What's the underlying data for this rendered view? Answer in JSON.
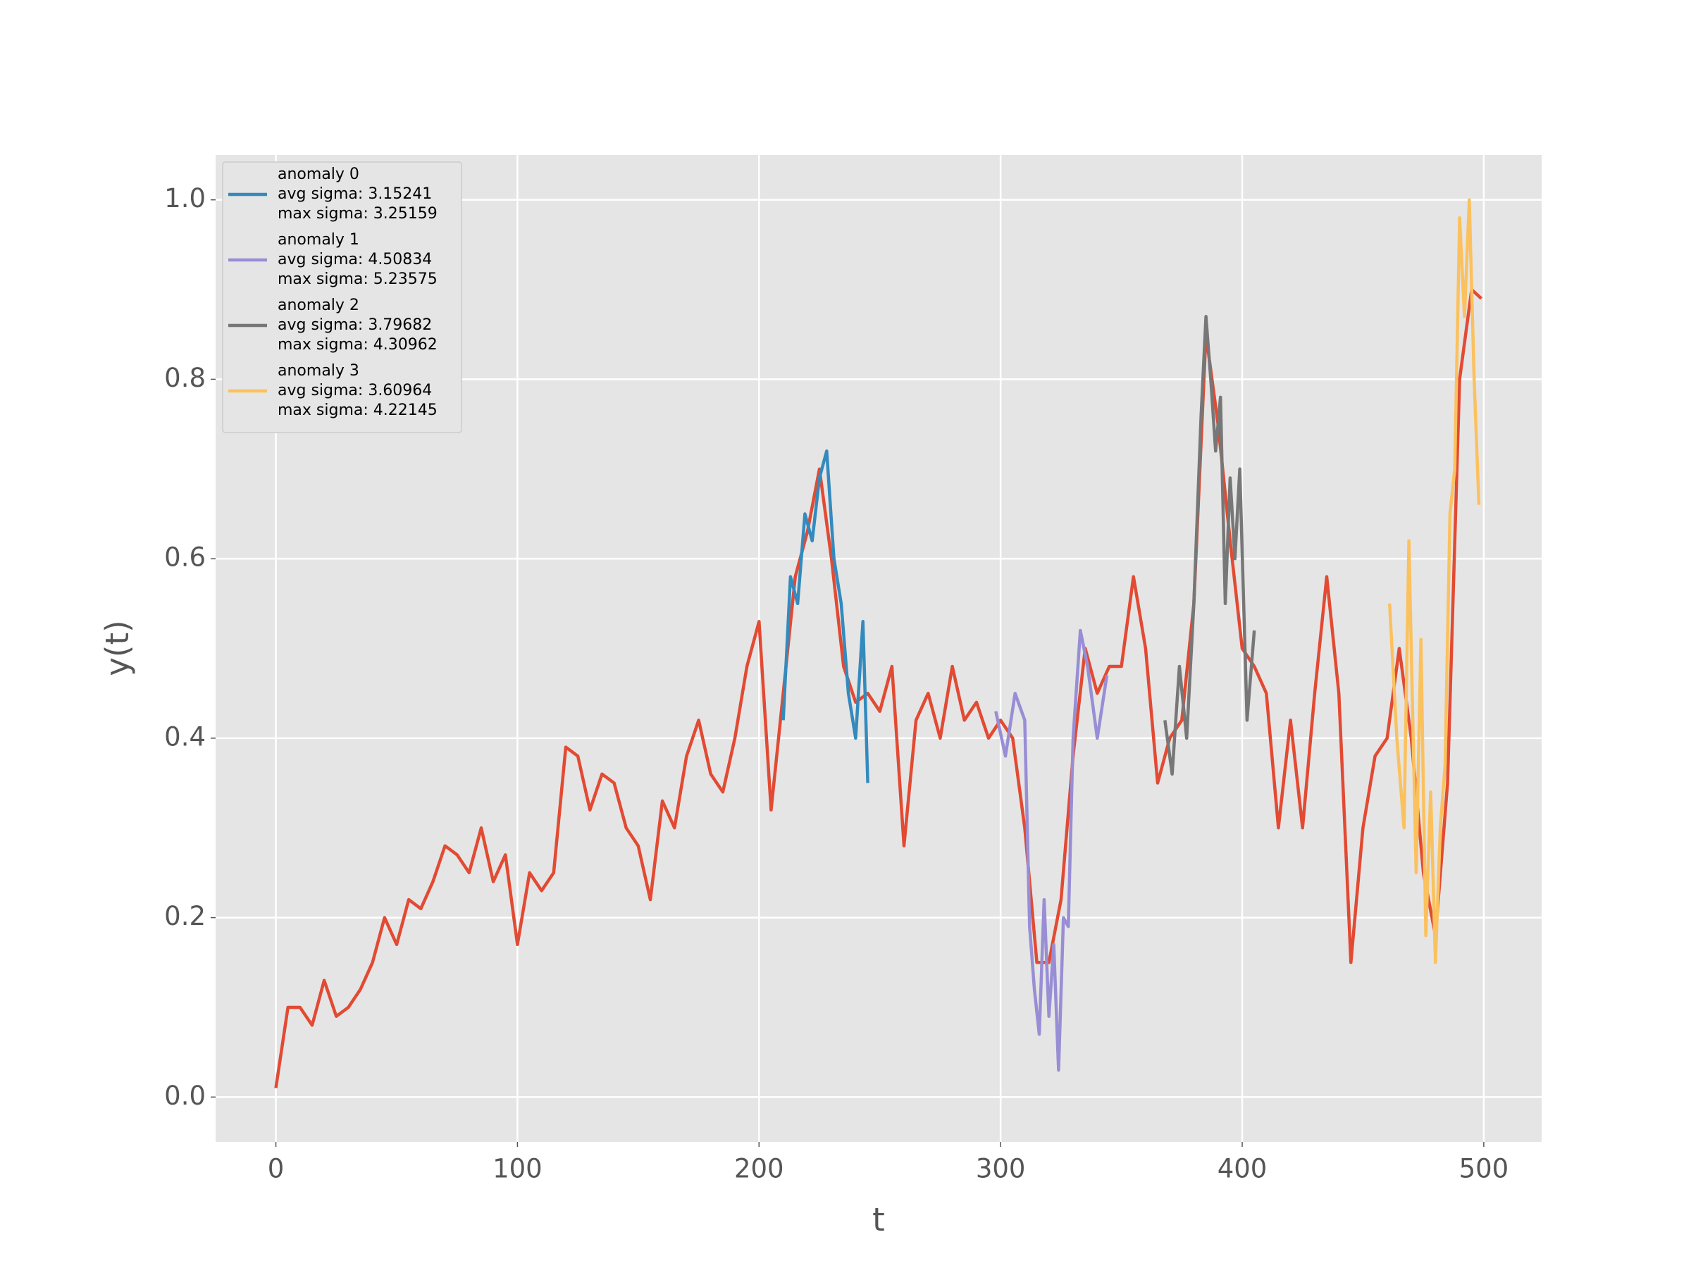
{
  "chart_data": {
    "type": "line",
    "xlabel": "t",
    "ylabel": "y(t)",
    "xlim": [
      -24.95,
      523.95
    ],
    "ylim": [
      -0.05,
      1.05
    ],
    "xticks": [
      0,
      100,
      200,
      300,
      400,
      500
    ],
    "yticks": [
      {
        "value": 0,
        "label": "0.0"
      },
      {
        "value": 0.2,
        "label": "0.2"
      },
      {
        "value": 0.4,
        "label": "0.4"
      },
      {
        "value": 0.6,
        "label": "0.6"
      },
      {
        "value": 0.8,
        "label": "0.8"
      },
      {
        "value": 1.0,
        "label": "1.0"
      }
    ],
    "grid": true,
    "legend": "upper left",
    "series": [
      {
        "color": "#E24A33",
        "x": [
          0,
          5,
          10,
          15,
          20,
          25,
          30,
          35,
          40,
          45,
          50,
          55,
          60,
          65,
          70,
          75,
          80,
          85,
          90,
          95,
          100,
          105,
          110,
          115,
          120,
          125,
          130,
          135,
          140,
          145,
          150,
          155,
          160,
          165,
          170,
          175,
          180,
          185,
          190,
          195,
          200,
          205,
          210,
          215,
          220,
          225,
          230,
          235,
          240,
          245,
          250,
          255,
          260,
          265,
          270,
          275,
          280,
          285,
          290,
          295,
          300,
          305,
          310,
          315,
          320,
          325,
          330,
          335,
          340,
          345,
          350,
          355,
          360,
          365,
          370,
          375,
          380,
          385,
          390,
          395,
          400,
          405,
          410,
          415,
          420,
          425,
          430,
          435,
          440,
          445,
          450,
          455,
          460,
          465,
          470,
          475,
          480,
          485,
          490,
          495,
          499
        ],
        "values": [
          0.01,
          0.1,
          0.1,
          0.08,
          0.13,
          0.09,
          0.1,
          0.12,
          0.15,
          0.2,
          0.17,
          0.22,
          0.21,
          0.24,
          0.28,
          0.27,
          0.25,
          0.3,
          0.24,
          0.27,
          0.17,
          0.25,
          0.23,
          0.25,
          0.39,
          0.38,
          0.32,
          0.36,
          0.35,
          0.3,
          0.28,
          0.22,
          0.33,
          0.3,
          0.38,
          0.42,
          0.36,
          0.34,
          0.4,
          0.48,
          0.53,
          0.32,
          0.45,
          0.58,
          0.63,
          0.7,
          0.6,
          0.48,
          0.44,
          0.45,
          0.43,
          0.48,
          0.28,
          0.42,
          0.45,
          0.4,
          0.48,
          0.42,
          0.44,
          0.4,
          0.42,
          0.4,
          0.3,
          0.15,
          0.15,
          0.22,
          0.38,
          0.5,
          0.45,
          0.48,
          0.48,
          0.58,
          0.5,
          0.35,
          0.4,
          0.42,
          0.55,
          0.85,
          0.75,
          0.62,
          0.5,
          0.48,
          0.45,
          0.3,
          0.42,
          0.3,
          0.45,
          0.58,
          0.45,
          0.15,
          0.3,
          0.38,
          0.4,
          0.5,
          0.4,
          0.25,
          0.18,
          0.35,
          0.8,
          0.9,
          0.89
        ]
      },
      {
        "name": [
          "anomaly 0",
          "avg sigma: 3.15241",
          "max sigma: 3.25159"
        ],
        "color": "#348ABD",
        "x": [
          210,
          213,
          216,
          219,
          222,
          225,
          228,
          231,
          234,
          237,
          240,
          243,
          245
        ],
        "values": [
          0.42,
          0.58,
          0.55,
          0.65,
          0.62,
          0.69,
          0.72,
          0.6,
          0.55,
          0.45,
          0.4,
          0.53,
          0.35
        ]
      },
      {
        "name": [
          "anomaly 1",
          "avg sigma: 4.50834",
          "max sigma: 5.23575"
        ],
        "color": "#988ED5",
        "x": [
          298,
          302,
          306,
          310,
          312,
          314,
          316,
          318,
          320,
          322,
          324,
          326,
          328,
          330,
          333,
          336,
          340,
          344
        ],
        "values": [
          0.43,
          0.38,
          0.45,
          0.42,
          0.19,
          0.12,
          0.07,
          0.22,
          0.09,
          0.17,
          0.03,
          0.2,
          0.19,
          0.4,
          0.52,
          0.48,
          0.4,
          0.47
        ]
      },
      {
        "name": [
          "anomaly 2",
          "avg sigma: 3.79682",
          "max sigma: 4.30962"
        ],
        "color": "#777777",
        "x": [
          368,
          371,
          374,
          377,
          380,
          383,
          385,
          387,
          389,
          391,
          393,
          395,
          397,
          399,
          402,
          405
        ],
        "values": [
          0.42,
          0.36,
          0.48,
          0.4,
          0.55,
          0.76,
          0.87,
          0.8,
          0.72,
          0.78,
          0.55,
          0.69,
          0.6,
          0.7,
          0.42,
          0.52
        ]
      },
      {
        "name": [
          "anomaly 3",
          "avg sigma: 3.60964",
          "max sigma: 4.22145"
        ],
        "color": "#FBC15E",
        "x": [
          461,
          464,
          467,
          469,
          472,
          474,
          476,
          478,
          480,
          482,
          484,
          486,
          488,
          490,
          492,
          494,
          496,
          498
        ],
        "values": [
          0.55,
          0.4,
          0.3,
          0.62,
          0.25,
          0.51,
          0.18,
          0.34,
          0.15,
          0.3,
          0.37,
          0.65,
          0.7,
          0.98,
          0.87,
          1.0,
          0.8,
          0.66
        ]
      }
    ]
  }
}
